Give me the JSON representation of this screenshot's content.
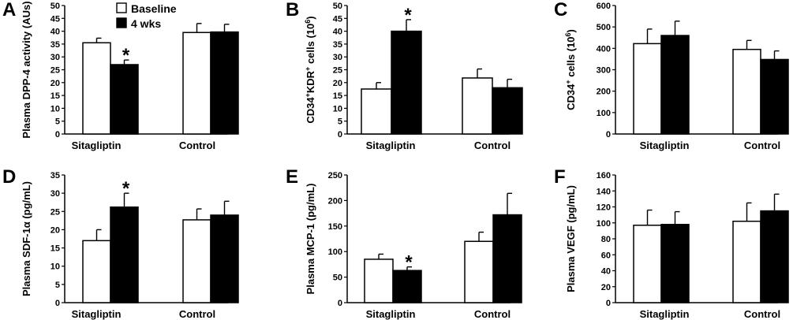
{
  "chart_data": [
    {
      "panel": "A",
      "type": "bar",
      "categories": [
        "Sitagliptin",
        "Control"
      ],
      "ylabel": "Plasma DPP-4 activity (AUs)",
      "ylim": [
        0,
        50
      ],
      "yticks": [
        0,
        5,
        10,
        15,
        20,
        25,
        30,
        35,
        40,
        45,
        50
      ],
      "series": [
        {
          "name": "Baseline",
          "values": [
            35.5,
            39.5
          ],
          "errors": [
            1.8,
            3.5
          ]
        },
        {
          "name": "4 wks",
          "values": [
            27,
            39.7
          ],
          "errors": [
            1.8,
            3.0
          ]
        }
      ],
      "significance": [
        {
          "category": 0,
          "series": 1,
          "mark": "*"
        }
      ]
    },
    {
      "panel": "B",
      "type": "bar",
      "categories": [
        "Sitagliptin",
        "Control"
      ],
      "ylabel_parts": [
        "CD34",
        "+",
        "KDR",
        "+",
        " cells (10",
        "6",
        ")"
      ],
      "ylim": [
        0,
        50
      ],
      "yticks": [
        0,
        5,
        10,
        15,
        20,
        25,
        30,
        35,
        40,
        45,
        50
      ],
      "series": [
        {
          "name": "Baseline",
          "values": [
            17.5,
            21.8
          ],
          "errors": [
            2.5,
            3.5
          ]
        },
        {
          "name": "4 wks",
          "values": [
            40,
            18
          ],
          "errors": [
            4.5,
            3.3
          ]
        }
      ],
      "significance": [
        {
          "category": 0,
          "series": 1,
          "mark": "*"
        }
      ]
    },
    {
      "panel": "C",
      "type": "bar",
      "categories": [
        "Sitagliptin",
        "Control"
      ],
      "ylabel_parts": [
        "CD34",
        "+",
        " cells (10",
        "6",
        ")"
      ],
      "ylim": [
        0,
        600
      ],
      "yticks": [
        0,
        100,
        200,
        300,
        400,
        500,
        600
      ],
      "series": [
        {
          "name": "Baseline",
          "values": [
            422,
            395
          ],
          "errors": [
            68,
            42
          ]
        },
        {
          "name": "4 wks",
          "values": [
            460,
            348
          ],
          "errors": [
            67,
            40
          ]
        }
      ],
      "significance": []
    },
    {
      "panel": "D",
      "type": "bar",
      "categories": [
        "Sitagliptin",
        "Control"
      ],
      "ylabel": "Plasma SDF-1α (pg/mL)",
      "ylim": [
        0,
        35
      ],
      "yticks": [
        0,
        5,
        10,
        15,
        20,
        25,
        30,
        35
      ],
      "series": [
        {
          "name": "Baseline",
          "values": [
            17,
            22.7
          ],
          "errors": [
            3.0,
            3.0
          ]
        },
        {
          "name": "4 wks",
          "values": [
            26.2,
            24
          ],
          "errors": [
            3.8,
            3.8
          ]
        }
      ],
      "significance": [
        {
          "category": 0,
          "series": 1,
          "mark": "*"
        }
      ]
    },
    {
      "panel": "E",
      "type": "bar",
      "categories": [
        "Sitagliptin",
        "Control"
      ],
      "ylabel": "Plasma MCP-1 (pg/mL)",
      "ylim": [
        0,
        250
      ],
      "yticks": [
        0,
        50,
        100,
        150,
        200,
        250
      ],
      "series": [
        {
          "name": "Baseline",
          "values": [
            85,
            120
          ],
          "errors": [
            10,
            18
          ]
        },
        {
          "name": "4 wks",
          "values": [
            63,
            172
          ],
          "errors": [
            7,
            42
          ]
        }
      ],
      "significance": [
        {
          "category": 0,
          "series": 1,
          "mark": "*"
        }
      ]
    },
    {
      "panel": "F",
      "type": "bar",
      "categories": [
        "Sitagliptin",
        "Control"
      ],
      "ylabel": "Plasma VEGF (pg/mL)",
      "ylim": [
        0,
        160
      ],
      "yticks": [
        0,
        20,
        40,
        60,
        80,
        100,
        120,
        140,
        160
      ],
      "series": [
        {
          "name": "Baseline",
          "values": [
            97,
            102
          ],
          "errors": [
            19,
            23
          ]
        },
        {
          "name": "4 wks",
          "values": [
            98,
            115
          ],
          "errors": [
            16,
            21
          ]
        }
      ],
      "significance": []
    }
  ],
  "legend": [
    {
      "label": "Baseline",
      "fill": "#ffffff"
    },
    {
      "label": "4 wks",
      "fill": "#000000"
    }
  ],
  "colors": {
    "baseline": "#ffffff",
    "treatment": "#000000",
    "stroke": "#000000"
  }
}
